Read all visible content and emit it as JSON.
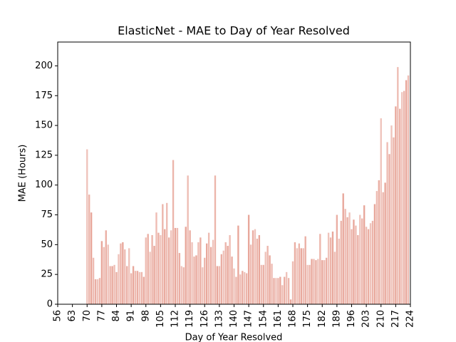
{
  "chart_data": {
    "type": "bar",
    "title": "ElasticNet - MAE to Day of Year Resolved",
    "xlabel": "Day of Year Resolved",
    "ylabel": "MAE (Hours)",
    "color": "#e08878",
    "x": [
      70,
      71,
      72,
      73,
      74,
      75,
      76,
      77,
      78,
      79,
      80,
      81,
      82,
      83,
      84,
      85,
      86,
      87,
      88,
      89,
      90,
      91,
      92,
      93,
      94,
      95,
      96,
      97,
      98,
      99,
      100,
      101,
      102,
      103,
      104,
      105,
      106,
      107,
      108,
      109,
      110,
      111,
      112,
      113,
      114,
      115,
      116,
      117,
      118,
      119,
      120,
      121,
      122,
      123,
      124,
      125,
      126,
      127,
      128,
      129,
      130,
      131,
      132,
      133,
      134,
      135,
      136,
      137,
      138,
      139,
      140,
      141,
      142,
      143,
      144,
      145,
      146,
      147,
      148,
      149,
      150,
      151,
      152,
      153,
      154,
      155,
      156,
      157,
      158,
      159,
      160,
      161,
      162,
      163,
      164,
      165,
      166,
      167,
      168,
      169,
      170,
      171,
      172,
      173,
      174,
      175,
      176,
      177,
      178,
      179,
      180,
      181,
      182,
      183,
      184,
      185,
      186,
      187,
      188,
      189,
      190,
      191,
      192,
      193,
      194,
      195,
      196,
      197,
      198,
      199,
      200,
      201,
      202,
      203,
      204,
      205,
      206,
      207,
      208,
      209,
      210,
      211,
      212,
      213,
      214,
      215,
      216,
      217,
      218,
      219,
      220,
      221,
      222,
      223
    ],
    "values": [
      130,
      92,
      77,
      39,
      21,
      21,
      22,
      53,
      48,
      62,
      50,
      32,
      32,
      33,
      27,
      42,
      51,
      52,
      46,
      32,
      47,
      26,
      32,
      28,
      28,
      27,
      27,
      23,
      56,
      59,
      44,
      58,
      49,
      77,
      60,
      58,
      84,
      63,
      85,
      56,
      62,
      121,
      64,
      64,
      43,
      32,
      31,
      65,
      108,
      62,
      52,
      40,
      41,
      52,
      56,
      31,
      39,
      51,
      60,
      48,
      54,
      108,
      32,
      32,
      42,
      45,
      52,
      49,
      58,
      40,
      30,
      23,
      66,
      25,
      28,
      27,
      26,
      75,
      50,
      62,
      63,
      55,
      58,
      33,
      33,
      44,
      49,
      41,
      34,
      22,
      22,
      22,
      23,
      16,
      23,
      27,
      22,
      4,
      36,
      52,
      47,
      51,
      47,
      47,
      57,
      33,
      33,
      38,
      38,
      37,
      38,
      59,
      37,
      37,
      39,
      60,
      56,
      61,
      44,
      75,
      55,
      70,
      93,
      80,
      73,
      77,
      63,
      71,
      66,
      58,
      75,
      72,
      83,
      65,
      63,
      68,
      70,
      84,
      95,
      104,
      156,
      94,
      102,
      136,
      126,
      150,
      140,
      166,
      199,
      164,
      178,
      179,
      188,
      192
    ],
    "xlim": [
      56,
      224
    ],
    "xticks": [
      56,
      63,
      70,
      77,
      84,
      91,
      98,
      105,
      112,
      119,
      126,
      133,
      140,
      147,
      154,
      161,
      168,
      175,
      182,
      189,
      196,
      203,
      210,
      217,
      224
    ],
    "ylim": [
      0,
      220
    ],
    "yticks": [
      0,
      25,
      50,
      75,
      100,
      125,
      150,
      175,
      200
    ]
  }
}
